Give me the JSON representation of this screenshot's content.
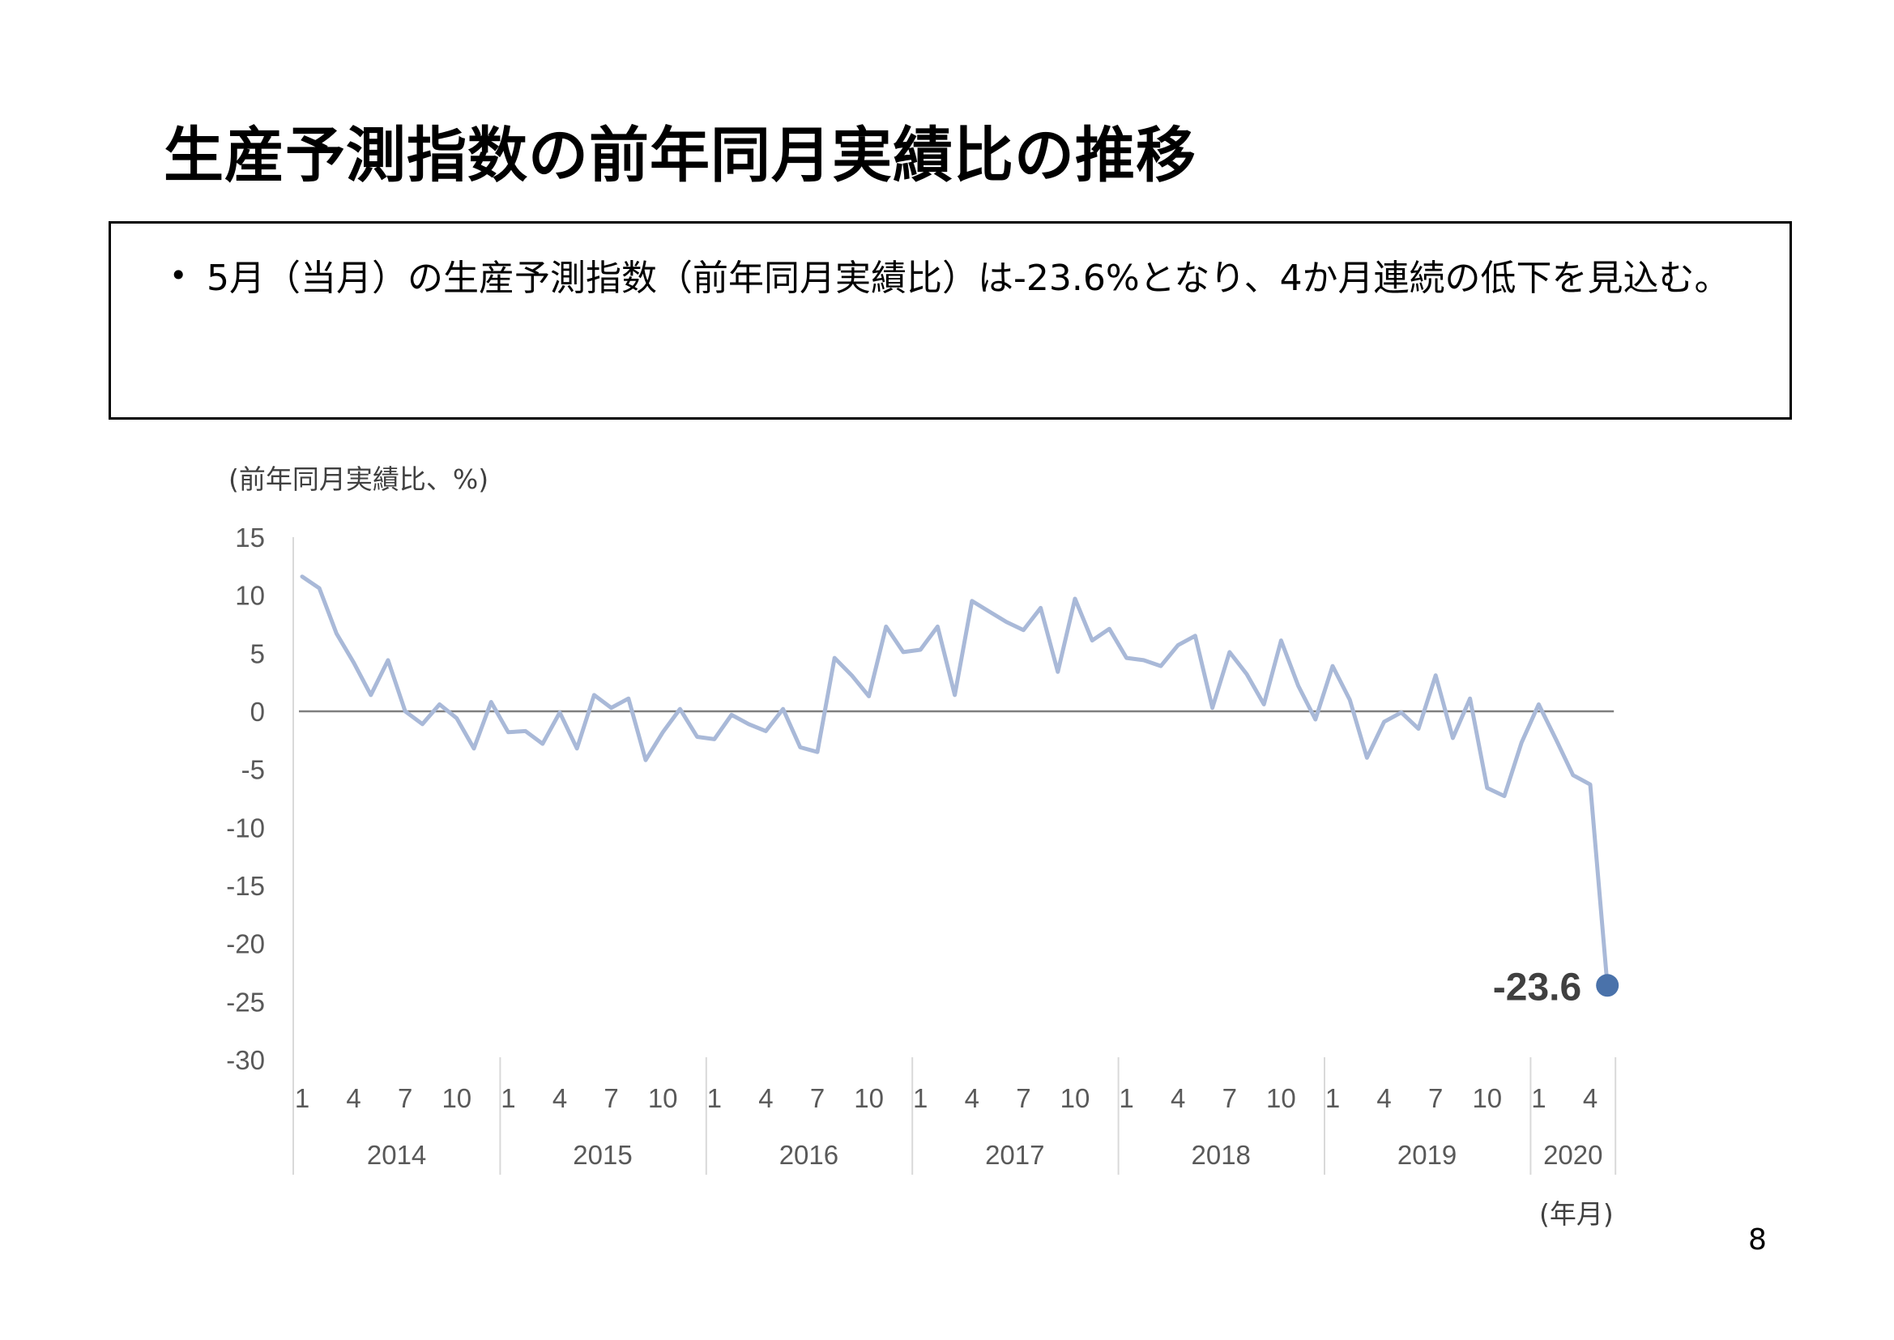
{
  "slide": {
    "title": "生産予測指数の前年同月実績比の推移",
    "bullet": "5月（当月）の生産予測指数（前年同月実績比）は-23.6%となり、4か月連続の低下を見込む。",
    "page_number": "8"
  },
  "chart_data": {
    "type": "line",
    "ylabel": "(前年同月実績比、%)",
    "xlabel": "(年月)",
    "ylim": [
      -30,
      15
    ],
    "yticks": [
      15,
      10,
      5,
      0,
      -5,
      -10,
      -15,
      -20,
      -25,
      -30
    ],
    "month_ticks": [
      1,
      4,
      7,
      10
    ],
    "years": [
      {
        "label": "2014",
        "months": 12
      },
      {
        "label": "2015",
        "months": 12
      },
      {
        "label": "2016",
        "months": 12
      },
      {
        "label": "2017",
        "months": 12
      },
      {
        "label": "2018",
        "months": 12
      },
      {
        "label": "2019",
        "months": 12
      },
      {
        "label": "2020",
        "months": 5
      }
    ],
    "series": [
      {
        "color": "#a9b9d8",
        "values": [
          11.6,
          10.6,
          6.7,
          4.2,
          1.4,
          4.4,
          0.0,
          -1.1,
          0.6,
          -0.6,
          -3.2,
          0.8,
          -1.8,
          -1.7,
          -2.8,
          -0.1,
          -3.2,
          1.4,
          0.3,
          1.1,
          -4.2,
          -1.8,
          0.2,
          -2.2,
          -2.4,
          -0.3,
          -1.1,
          -1.7,
          0.2,
          -3.1,
          -3.5,
          4.6,
          3.1,
          1.3,
          7.3,
          5.1,
          5.3,
          7.3,
          1.4,
          9.5,
          8.6,
          7.7,
          7.0,
          8.9,
          3.4,
          9.7,
          6.1,
          7.1,
          4.6,
          4.4,
          3.9,
          5.7,
          6.5,
          0.3,
          5.1,
          3.2,
          0.6,
          6.1,
          2.2,
          -0.7,
          3.9,
          1.0,
          -4.0,
          -0.9,
          -0.1,
          -1.5,
          3.1,
          -2.3,
          1.1,
          -6.6,
          -7.3,
          -2.7,
          0.6,
          -2.4,
          -5.5,
          -6.3,
          -23.6
        ]
      }
    ],
    "highlight": {
      "label": "-23.6",
      "value": -23.6,
      "color": "#4a72aa"
    },
    "zero_line": true
  }
}
